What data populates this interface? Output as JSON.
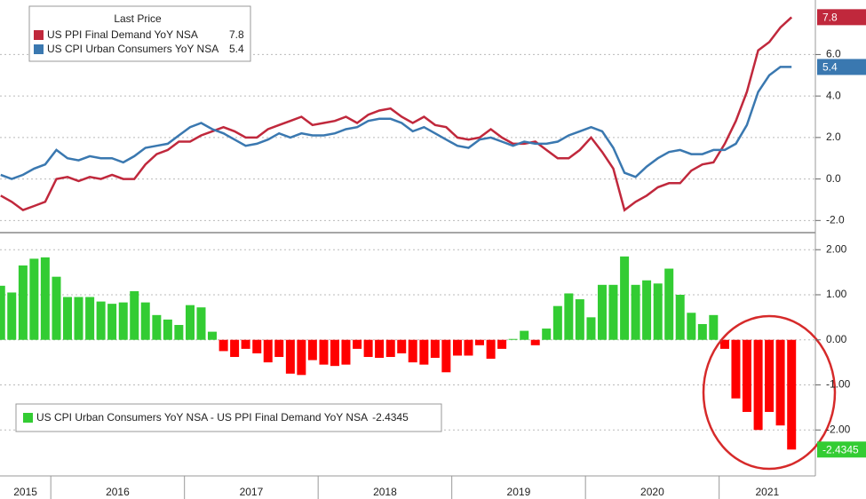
{
  "chart_data": [
    {
      "type": "line",
      "legend_title": "Last Price",
      "x": [
        2015.625,
        2015.708,
        2015.792,
        2015.875,
        2015.958,
        2016.042,
        2016.125,
        2016.208,
        2016.292,
        2016.375,
        2016.458,
        2016.542,
        2016.625,
        2016.708,
        2016.792,
        2016.875,
        2016.958,
        2017.042,
        2017.125,
        2017.208,
        2017.292,
        2017.375,
        2017.458,
        2017.542,
        2017.625,
        2017.708,
        2017.792,
        2017.875,
        2017.958,
        2018.042,
        2018.125,
        2018.208,
        2018.292,
        2018.375,
        2018.458,
        2018.542,
        2018.625,
        2018.708,
        2018.792,
        2018.875,
        2018.958,
        2019.042,
        2019.125,
        2019.208,
        2019.292,
        2019.375,
        2019.458,
        2019.542,
        2019.625,
        2019.708,
        2019.792,
        2019.875,
        2019.958,
        2020.042,
        2020.125,
        2020.208,
        2020.292,
        2020.375,
        2020.458,
        2020.542,
        2020.625,
        2020.708,
        2020.792,
        2020.875,
        2020.958,
        2021.042,
        2021.125,
        2021.208,
        2021.292,
        2021.375,
        2021.458,
        2021.542
      ],
      "xlim": [
        2015.62,
        2021.72
      ],
      "ylim": [
        -2.5,
        8.5
      ],
      "yticks": [
        {
          "value": -2,
          "label": "-2.0"
        },
        {
          "value": 0,
          "label": "0.0"
        },
        {
          "value": 2,
          "label": "2.0"
        },
        {
          "value": 4,
          "label": "4.0"
        },
        {
          "value": 6,
          "label": "6.0"
        }
      ],
      "grid": true,
      "series": [
        {
          "name": "US PPI Final Demand YoY NSA",
          "color": "#c0283c",
          "values": [
            -0.8,
            -1.1,
            -1.5,
            -1.3,
            -1.1,
            0.0,
            0.1,
            -0.1,
            0.1,
            0.0,
            0.2,
            0.0,
            0.0,
            0.7,
            1.2,
            1.4,
            1.8,
            1.8,
            2.1,
            2.3,
            2.5,
            2.3,
            2.0,
            2.0,
            2.4,
            2.6,
            2.8,
            3.0,
            2.6,
            2.7,
            2.8,
            3.0,
            2.7,
            3.1,
            3.3,
            3.4,
            3.0,
            2.7,
            3.0,
            2.6,
            2.5,
            2.0,
            1.9,
            2.0,
            2.4,
            2.0,
            1.7,
            1.7,
            1.8,
            1.4,
            1.0,
            1.0,
            1.4,
            2.0,
            1.3,
            0.5,
            -1.5,
            -1.1,
            -0.8,
            -0.4,
            -0.2,
            -0.2,
            0.4,
            0.7,
            0.8,
            1.7,
            2.8,
            4.2,
            6.2,
            6.6,
            7.3,
            7.8
          ]
        },
        {
          "name": "US CPI Urban Consumers YoY NSA",
          "color": "#3a78b0",
          "values": [
            0.2,
            0.0,
            0.2,
            0.5,
            0.7,
            1.4,
            1.0,
            0.9,
            1.1,
            1.0,
            1.0,
            0.8,
            1.1,
            1.5,
            1.6,
            1.7,
            2.1,
            2.5,
            2.7,
            2.4,
            2.2,
            1.9,
            1.6,
            1.7,
            1.9,
            2.2,
            2.0,
            2.2,
            2.1,
            2.1,
            2.2,
            2.4,
            2.5,
            2.8,
            2.9,
            2.9,
            2.7,
            2.3,
            2.5,
            2.2,
            1.9,
            1.6,
            1.5,
            1.9,
            2.0,
            1.8,
            1.6,
            1.8,
            1.7,
            1.7,
            1.8,
            2.1,
            2.3,
            2.5,
            2.3,
            1.5,
            0.3,
            0.1,
            0.6,
            1.0,
            1.3,
            1.4,
            1.2,
            1.2,
            1.4,
            1.4,
            1.7,
            2.6,
            4.2,
            5.0,
            5.4,
            5.4
          ]
        }
      ]
    },
    {
      "type": "bar",
      "x": [
        2015.625,
        2015.708,
        2015.792,
        2015.875,
        2015.958,
        2016.042,
        2016.125,
        2016.208,
        2016.292,
        2016.375,
        2016.458,
        2016.542,
        2016.625,
        2016.708,
        2016.792,
        2016.875,
        2016.958,
        2017.042,
        2017.125,
        2017.208,
        2017.292,
        2017.375,
        2017.458,
        2017.542,
        2017.625,
        2017.708,
        2017.792,
        2017.875,
        2017.958,
        2018.042,
        2018.125,
        2018.208,
        2018.292,
        2018.375,
        2018.458,
        2018.542,
        2018.625,
        2018.708,
        2018.792,
        2018.875,
        2018.958,
        2019.042,
        2019.125,
        2019.208,
        2019.292,
        2019.375,
        2019.458,
        2019.542,
        2019.625,
        2019.708,
        2019.792,
        2019.875,
        2019.958,
        2020.042,
        2020.125,
        2020.208,
        2020.292,
        2020.375,
        2020.458,
        2020.542,
        2020.625,
        2020.708,
        2020.792,
        2020.875,
        2020.958,
        2021.042,
        2021.125,
        2021.208,
        2021.292,
        2021.375,
        2021.458,
        2021.542
      ],
      "xlim": [
        2015.62,
        2021.72
      ],
      "xticks": [
        2016,
        2017,
        2018,
        2019,
        2020,
        2021
      ],
      "x_labels": [
        "2015",
        "2016",
        "2017",
        "2018",
        "2019",
        "2020",
        "2021"
      ],
      "ylim": [
        -3.0,
        2.3
      ],
      "yticks": [
        {
          "value": 2,
          "label": "2.00"
        },
        {
          "value": 1,
          "label": "1.00"
        },
        {
          "value": 0,
          "label": "0.00"
        },
        {
          "value": -1,
          "label": "-1.00"
        },
        {
          "value": -2,
          "label": "-2.00"
        }
      ],
      "grid": true,
      "series": [
        {
          "name": "US CPI Urban Consumers YoY NSA - US PPI Final Demand YoY NSA",
          "color": "#33cc33",
          "negative_color": "#ff0000",
          "values": [
            1.2,
            1.05,
            1.65,
            1.8,
            1.83,
            1.4,
            0.95,
            0.95,
            0.95,
            0.85,
            0.8,
            0.83,
            1.08,
            0.83,
            0.55,
            0.45,
            0.33,
            0.77,
            0.72,
            0.18,
            -0.25,
            -0.38,
            -0.2,
            -0.3,
            -0.5,
            -0.38,
            -0.75,
            -0.78,
            -0.45,
            -0.55,
            -0.58,
            -0.55,
            -0.2,
            -0.38,
            -0.4,
            -0.38,
            -0.3,
            -0.5,
            -0.55,
            -0.4,
            -0.72,
            -0.35,
            -0.35,
            -0.12,
            -0.42,
            -0.2,
            0.02,
            0.2,
            -0.12,
            0.25,
            0.75,
            1.03,
            0.9,
            0.5,
            1.22,
            1.22,
            1.85,
            1.22,
            1.32,
            1.25,
            1.58,
            1.0,
            0.6,
            0.35,
            0.55,
            -0.2,
            -1.3,
            -1.6,
            -2.0,
            -1.6,
            -1.9,
            -2.4345
          ]
        }
      ]
    }
  ]
}
